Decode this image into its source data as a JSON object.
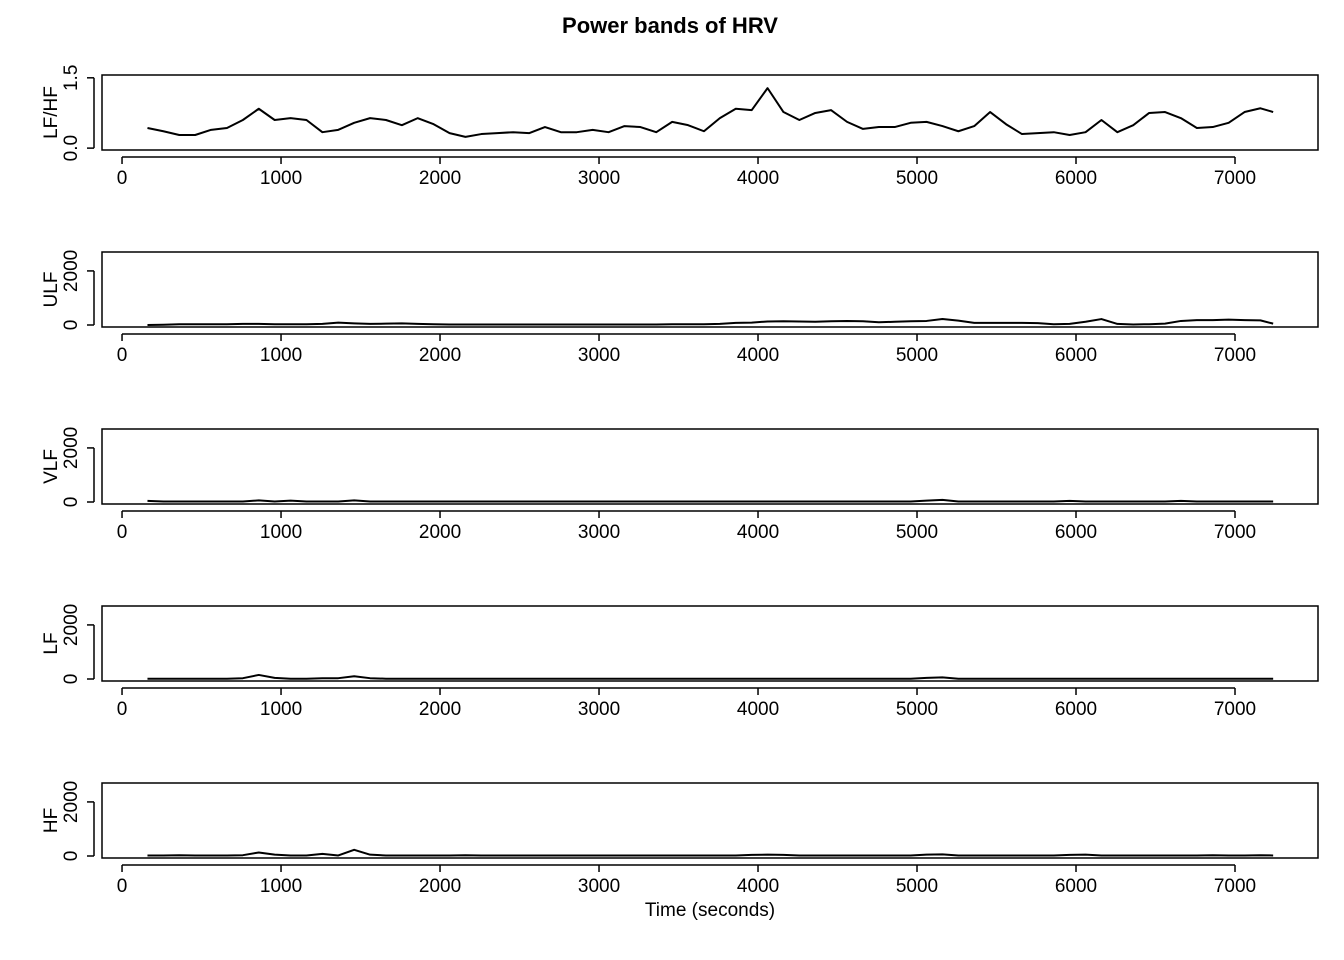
{
  "title": "Power bands of HRV",
  "chart_data": [
    {
      "type": "line",
      "ylabel": "LF/HF",
      "x": [
        160,
        260,
        360,
        460,
        560,
        660,
        760,
        860,
        960,
        1060,
        1160,
        1260,
        1360,
        1460,
        1560,
        1660,
        1760,
        1860,
        1960,
        2060,
        2160,
        2260,
        2360,
        2460,
        2560,
        2660,
        2760,
        2860,
        2960,
        3060,
        3160,
        3260,
        3360,
        3460,
        3560,
        3660,
        3760,
        3860,
        3960,
        4060,
        4160,
        4260,
        4360,
        4460,
        4560,
        4660,
        4760,
        4860,
        4960,
        5060,
        5160,
        5260,
        5360,
        5460,
        5560,
        5660,
        5760,
        5860,
        5960,
        6060,
        6160,
        6260,
        6360,
        6460,
        6560,
        6660,
        6760,
        6860,
        6960,
        7060,
        7160,
        7240
      ],
      "series": [
        {
          "color": "#000000",
          "values": [
            0.43,
            0.36,
            0.28,
            0.28,
            0.39,
            0.43,
            0.6,
            0.84,
            0.6,
            0.64,
            0.6,
            0.34,
            0.39,
            0.54,
            0.64,
            0.6,
            0.49,
            0.64,
            0.51,
            0.32,
            0.24,
            0.3,
            0.32,
            0.34,
            0.32,
            0.45,
            0.34,
            0.34,
            0.39,
            0.34,
            0.47,
            0.45,
            0.34,
            0.56,
            0.49,
            0.36,
            0.64,
            0.84,
            0.81,
            1.28,
            0.77,
            0.6,
            0.75,
            0.81,
            0.56,
            0.41,
            0.45,
            0.45,
            0.54,
            0.56,
            0.47,
            0.36,
            0.47,
            0.77,
            0.51,
            0.3,
            0.32,
            0.34,
            0.28,
            0.34,
            0.6,
            0.34,
            0.49,
            0.75,
            0.77,
            0.64,
            0.43,
            0.45,
            0.54,
            0.77,
            0.85,
            0.77
          ]
        }
      ],
      "xlim": [
        -126,
        7522
      ],
      "xticks": [
        0,
        1000,
        2000,
        3000,
        4000,
        5000,
        6000,
        7000
      ],
      "ylim": [
        -0.04,
        1.56
      ],
      "yticks": [
        {
          "value": 0,
          "label": "0.0"
        },
        1.5
      ]
    },
    {
      "type": "line",
      "ylabel": "ULF",
      "x": [
        160,
        260,
        360,
        460,
        560,
        660,
        760,
        860,
        960,
        1060,
        1160,
        1260,
        1360,
        1460,
        1560,
        1660,
        1760,
        1860,
        1960,
        2060,
        2160,
        2260,
        2360,
        2460,
        2560,
        2660,
        2760,
        2860,
        2960,
        3060,
        3160,
        3260,
        3360,
        3460,
        3560,
        3660,
        3760,
        3860,
        3960,
        4060,
        4160,
        4260,
        4360,
        4460,
        4560,
        4660,
        4760,
        4860,
        4960,
        5060,
        5160,
        5260,
        5360,
        5460,
        5560,
        5660,
        5760,
        5860,
        5960,
        6060,
        6160,
        6260,
        6360,
        6460,
        6560,
        6660,
        6760,
        6860,
        6960,
        7060,
        7160,
        7240
      ],
      "series": [
        {
          "color": "#000000",
          "values": [
            0,
            10,
            30,
            30,
            30,
            30,
            40,
            40,
            30,
            30,
            30,
            40,
            90,
            60,
            40,
            50,
            60,
            40,
            30,
            20,
            20,
            20,
            20,
            20,
            20,
            20,
            20,
            20,
            20,
            20,
            20,
            20,
            20,
            30,
            30,
            30,
            40,
            80,
            90,
            130,
            140,
            130,
            120,
            140,
            150,
            140,
            100,
            120,
            140,
            150,
            220,
            160,
            80,
            80,
            80,
            80,
            70,
            30,
            40,
            120,
            220,
            40,
            20,
            30,
            50,
            150,
            180,
            180,
            200,
            180,
            170,
            50
          ]
        }
      ],
      "xlim": [
        -126,
        7522
      ],
      "xticks": [
        0,
        1000,
        2000,
        3000,
        4000,
        5000,
        6000,
        7000
      ],
      "ylim": [
        -74,
        2700
      ],
      "yticks": [
        0,
        2000
      ]
    },
    {
      "type": "line",
      "ylabel": "VLF",
      "x": [
        160,
        260,
        360,
        460,
        560,
        660,
        760,
        860,
        960,
        1060,
        1160,
        1260,
        1360,
        1460,
        1560,
        1660,
        1760,
        1860,
        1960,
        2060,
        2160,
        2260,
        2360,
        2460,
        2560,
        2660,
        2760,
        2860,
        2960,
        3060,
        3160,
        3260,
        3360,
        3460,
        3560,
        3660,
        3760,
        3860,
        3960,
        4060,
        4160,
        4260,
        4360,
        4460,
        4560,
        4660,
        4760,
        4860,
        4960,
        5060,
        5160,
        5260,
        5360,
        5460,
        5560,
        5660,
        5760,
        5860,
        5960,
        6060,
        6160,
        6260,
        6360,
        6460,
        6560,
        6660,
        6760,
        6860,
        6960,
        7060,
        7160,
        7240
      ],
      "series": [
        {
          "color": "#000000",
          "values": [
            40,
            20,
            20,
            20,
            20,
            20,
            20,
            60,
            20,
            50,
            20,
            20,
            20,
            60,
            20,
            20,
            20,
            20,
            20,
            20,
            20,
            20,
            20,
            20,
            20,
            20,
            20,
            20,
            20,
            20,
            20,
            20,
            20,
            20,
            20,
            20,
            20,
            20,
            20,
            20,
            20,
            20,
            20,
            20,
            20,
            20,
            20,
            20,
            20,
            50,
            80,
            20,
            20,
            20,
            20,
            20,
            20,
            20,
            40,
            20,
            20,
            20,
            20,
            20,
            20,
            40,
            20,
            20,
            20,
            20,
            20,
            20
          ]
        }
      ],
      "xlim": [
        -126,
        7522
      ],
      "xticks": [
        0,
        1000,
        2000,
        3000,
        4000,
        5000,
        6000,
        7000
      ],
      "ylim": [
        -74,
        2700
      ],
      "yticks": [
        0,
        2000
      ]
    },
    {
      "type": "line",
      "ylabel": "LF",
      "x": [
        160,
        260,
        360,
        460,
        560,
        660,
        760,
        860,
        960,
        1060,
        1160,
        1260,
        1360,
        1460,
        1560,
        1660,
        1760,
        1860,
        1960,
        2060,
        2160,
        2260,
        2360,
        2460,
        2560,
        2660,
        2760,
        2860,
        2960,
        3060,
        3160,
        3260,
        3360,
        3460,
        3560,
        3660,
        3760,
        3860,
        3960,
        4060,
        4160,
        4260,
        4360,
        4460,
        4560,
        4660,
        4760,
        4860,
        4960,
        5060,
        5160,
        5260,
        5360,
        5460,
        5560,
        5660,
        5760,
        5860,
        5960,
        6060,
        6160,
        6260,
        6360,
        6460,
        6560,
        6660,
        6760,
        6860,
        6960,
        7060,
        7160,
        7240
      ],
      "series": [
        {
          "color": "#000000",
          "values": [
            10,
            10,
            10,
            10,
            10,
            10,
            30,
            150,
            40,
            10,
            10,
            30,
            30,
            100,
            30,
            10,
            10,
            10,
            10,
            10,
            10,
            10,
            10,
            10,
            10,
            10,
            10,
            10,
            10,
            10,
            10,
            10,
            10,
            10,
            10,
            10,
            10,
            10,
            10,
            10,
            10,
            10,
            10,
            10,
            10,
            10,
            10,
            10,
            10,
            40,
            60,
            10,
            10,
            10,
            10,
            10,
            10,
            10,
            10,
            10,
            10,
            10,
            10,
            10,
            10,
            10,
            10,
            10,
            10,
            10,
            10,
            10
          ]
        }
      ],
      "xlim": [
        -126,
        7522
      ],
      "xticks": [
        0,
        1000,
        2000,
        3000,
        4000,
        5000,
        6000,
        7000
      ],
      "ylim": [
        -74,
        2700
      ],
      "yticks": [
        0,
        2000
      ]
    },
    {
      "type": "line",
      "ylabel": "HF",
      "xlabel": "Time (seconds)",
      "x": [
        160,
        260,
        360,
        460,
        560,
        660,
        760,
        860,
        960,
        1060,
        1160,
        1260,
        1360,
        1460,
        1560,
        1660,
        1760,
        1860,
        1960,
        2060,
        2160,
        2260,
        2360,
        2460,
        2560,
        2660,
        2760,
        2860,
        2960,
        3060,
        3160,
        3260,
        3360,
        3460,
        3560,
        3660,
        3760,
        3860,
        3960,
        4060,
        4160,
        4260,
        4360,
        4460,
        4560,
        4660,
        4760,
        4860,
        4960,
        5060,
        5160,
        5260,
        5360,
        5460,
        5560,
        5660,
        5760,
        5860,
        5960,
        6060,
        6160,
        6260,
        6360,
        6460,
        6560,
        6660,
        6760,
        6860,
        6960,
        7060,
        7160,
        7240
      ],
      "series": [
        {
          "color": "#000000",
          "values": [
            20,
            20,
            30,
            20,
            20,
            20,
            30,
            130,
            50,
            20,
            20,
            80,
            20,
            230,
            50,
            20,
            20,
            20,
            20,
            20,
            30,
            20,
            20,
            20,
            20,
            20,
            20,
            20,
            20,
            20,
            20,
            20,
            20,
            20,
            20,
            20,
            20,
            20,
            40,
            50,
            40,
            20,
            20,
            20,
            20,
            20,
            20,
            20,
            20,
            50,
            60,
            20,
            20,
            20,
            20,
            20,
            20,
            20,
            40,
            50,
            20,
            20,
            20,
            20,
            20,
            20,
            20,
            30,
            20,
            20,
            30,
            20
          ]
        }
      ],
      "xlim": [
        -126,
        7522
      ],
      "xticks": [
        0,
        1000,
        2000,
        3000,
        4000,
        5000,
        6000,
        7000
      ],
      "ylim": [
        -74,
        2700
      ],
      "yticks": [
        0,
        2000
      ]
    }
  ]
}
